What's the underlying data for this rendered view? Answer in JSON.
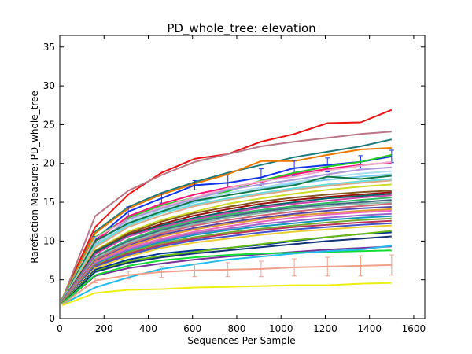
{
  "chart_data": {
    "type": "line",
    "title": "PD_whole_tree: elevation",
    "xlabel": "Sequences Per Sample",
    "ylabel": "Rarefaction Measure: PD_whole_tree",
    "xlim": [
      0,
      1650
    ],
    "ylim": [
      0,
      36.5
    ],
    "xticks": [
      0,
      200,
      400,
      600,
      800,
      1000,
      1200,
      1400,
      1600
    ],
    "yticks": [
      0,
      5,
      10,
      15,
      20,
      25,
      30,
      35
    ],
    "grid": false,
    "x": [
      10,
      160,
      310,
      460,
      610,
      760,
      910,
      1060,
      1210,
      1360,
      1500
    ],
    "series": [
      {
        "color": "#ee1111",
        "values": [
          2.5,
          11.8,
          16.0,
          18.8,
          20.6,
          21.2,
          22.8,
          23.8,
          25.2,
          25.3,
          26.9
        ]
      },
      {
        "color": "#bb7788",
        "values": [
          2.4,
          13.2,
          16.5,
          18.5,
          20.2,
          21.2,
          22.2,
          22.8,
          23.3,
          23.8,
          24.1
        ]
      },
      {
        "color": "#1a7a7a",
        "values": [
          2.4,
          11.2,
          14.4,
          16.2,
          17.6,
          18.8,
          19.8,
          20.8,
          21.5,
          22.2,
          23.1
        ]
      },
      {
        "color": "#ee7700",
        "values": [
          2.4,
          11.0,
          14.2,
          16.0,
          17.4,
          18.6,
          20.3,
          20.3,
          21.1,
          21.8,
          22.0
        ]
      },
      {
        "color": "#1133ee",
        "values": [
          2.3,
          10.2,
          13.8,
          15.5,
          17.2,
          17.5,
          18.2,
          19.4,
          19.8,
          20.2,
          20.9
        ],
        "error": [
          0,
          0.4,
          0.6,
          0.6,
          0.6,
          1.0,
          1.1,
          1.0,
          0.9,
          0.8,
          0.8
        ]
      },
      {
        "color": "#22cc22",
        "values": [
          2.4,
          10.5,
          13.0,
          14.6,
          15.6,
          16.4,
          17.8,
          18.8,
          19.6,
          20.2,
          21.1
        ]
      },
      {
        "color": "#ff1177",
        "values": [
          2.3,
          10.0,
          13.2,
          14.8,
          16.0,
          16.9,
          17.6,
          18.6,
          19.3,
          19.8,
          20.1
        ]
      },
      {
        "color": "#eeaacc",
        "values": [
          2.3,
          10.4,
          12.8,
          14.4,
          15.6,
          16.8,
          17.7,
          18.3,
          19.1,
          19.7,
          20.2
        ]
      },
      {
        "color": "#aa99dd",
        "values": [
          2.3,
          9.6,
          12.8,
          14.2,
          15.4,
          16.6,
          17.3,
          17.9,
          18.6,
          19.2,
          19.5
        ]
      },
      {
        "color": "#aaddee",
        "values": [
          2.3,
          9.5,
          12.5,
          14.0,
          15.2,
          16.2,
          16.9,
          17.6,
          18.2,
          18.7,
          19.0
        ]
      },
      {
        "color": "#77ccee",
        "values": [
          2.2,
          9.3,
          12.2,
          13.8,
          15.0,
          15.9,
          16.7,
          17.4,
          17.9,
          18.3,
          18.6
        ]
      },
      {
        "color": "#117744",
        "values": [
          2.3,
          10.0,
          12.3,
          13.8,
          15.2,
          15.9,
          16.6,
          17.2,
          18.3,
          18.0,
          18.4
        ]
      },
      {
        "color": "#66dddd",
        "values": [
          2.3,
          9.5,
          12.0,
          13.6,
          14.7,
          15.5,
          16.2,
          16.8,
          17.3,
          17.7,
          18.0
        ]
      },
      {
        "color": "#ddaa88",
        "values": [
          2.2,
          9.2,
          11.8,
          13.3,
          14.5,
          15.3,
          16.0,
          16.6,
          17.1,
          17.5,
          17.8
        ]
      },
      {
        "color": "#ccdd22",
        "values": [
          2.2,
          8.8,
          11.2,
          12.7,
          13.8,
          14.8,
          15.5,
          16.1,
          16.6,
          17.0,
          17.3
        ]
      },
      {
        "color": "#885522",
        "values": [
          2.2,
          8.7,
          11.0,
          12.5,
          13.6,
          14.4,
          15.1,
          15.6,
          16.0,
          16.3,
          16.5
        ]
      },
      {
        "color": "#991111",
        "values": [
          2.2,
          8.5,
          10.8,
          12.2,
          13.3,
          14.1,
          14.8,
          15.3,
          15.7,
          16.0,
          16.3
        ]
      },
      {
        "color": "#006666",
        "values": [
          2.2,
          8.6,
          10.7,
          12.0,
          13.0,
          13.8,
          14.5,
          15.0,
          15.5,
          15.8,
          16.1
        ]
      },
      {
        "color": "#cc44aa",
        "values": [
          2.2,
          8.3,
          10.6,
          11.8,
          12.8,
          13.6,
          14.3,
          14.8,
          15.2,
          15.6,
          15.9
        ]
      },
      {
        "color": "#33bb66",
        "values": [
          2.1,
          8.0,
          10.2,
          11.6,
          12.6,
          13.4,
          14.0,
          14.5,
          14.9,
          15.3,
          15.6
        ]
      },
      {
        "color": "#446688",
        "values": [
          2.1,
          7.9,
          10.0,
          11.4,
          12.4,
          13.2,
          13.8,
          14.3,
          14.7,
          15.0,
          15.3
        ]
      },
      {
        "color": "#88bbaa",
        "values": [
          2.1,
          7.8,
          9.8,
          11.2,
          12.2,
          13.0,
          13.6,
          14.1,
          14.5,
          14.8,
          15.0
        ]
      },
      {
        "color": "#cc6677",
        "values": [
          2.1,
          7.6,
          9.6,
          11.0,
          12.0,
          12.7,
          13.3,
          13.8,
          14.2,
          14.5,
          14.8
        ]
      },
      {
        "color": "#5544aa",
        "values": [
          2.1,
          7.4,
          9.4,
          10.8,
          11.7,
          12.4,
          13.0,
          13.5,
          13.9,
          14.2,
          14.4
        ]
      },
      {
        "color": "#dd9933",
        "values": [
          2.1,
          7.3,
          9.3,
          10.6,
          11.5,
          12.2,
          12.8,
          13.3,
          13.6,
          13.9,
          14.1
        ]
      },
      {
        "color": "#ee66bb",
        "values": [
          2.0,
          7.2,
          9.1,
          10.3,
          11.2,
          11.9,
          12.5,
          13.0,
          13.4,
          13.7,
          13.9
        ]
      },
      {
        "color": "#9966cc",
        "values": [
          2.0,
          7.1,
          8.9,
          10.1,
          11.0,
          11.6,
          12.2,
          12.6,
          13.0,
          13.3,
          13.5
        ]
      },
      {
        "color": "#1199bb",
        "values": [
          2.0,
          7.0,
          8.7,
          9.9,
          10.8,
          11.4,
          11.9,
          12.3,
          12.7,
          13.0,
          13.2
        ]
      },
      {
        "color": "#77aa33",
        "values": [
          2.0,
          6.9,
          8.6,
          9.7,
          10.5,
          11.1,
          11.6,
          12.0,
          12.4,
          12.7,
          12.9
        ]
      },
      {
        "color": "#bb3355",
        "values": [
          2.0,
          6.8,
          8.4,
          9.5,
          10.3,
          10.9,
          11.4,
          11.8,
          12.1,
          12.4,
          12.6
        ]
      },
      {
        "color": "#4455cc",
        "values": [
          2.0,
          6.7,
          8.2,
          9.3,
          10.1,
          10.6,
          11.1,
          11.5,
          11.8,
          12.1,
          12.3
        ]
      },
      {
        "color": "#eecc33",
        "values": [
          2.0,
          6.5,
          8.0,
          9.1,
          9.8,
          10.3,
          10.8,
          11.2,
          11.5,
          11.8,
          12.0
        ]
      },
      {
        "color": "#003399",
        "values": [
          2.0,
          6.3,
          7.6,
          8.4,
          8.8,
          9.1,
          9.5,
          10.0,
          10.5,
          10.9,
          11.1
        ]
      },
      {
        "color": "#66bb11",
        "values": [
          2.0,
          6.1,
          7.4,
          8.1,
          8.6,
          9.1,
          9.6,
          10.1,
          10.5,
          10.9,
          11.3
        ]
      },
      {
        "color": "#113377",
        "values": [
          1.9,
          6.0,
          7.2,
          7.9,
          8.4,
          8.8,
          9.2,
          9.6,
          10.0,
          10.3,
          10.6
        ]
      },
      {
        "color": "#773399",
        "values": [
          1.9,
          5.5,
          6.5,
          7.1,
          7.6,
          8.0,
          8.3,
          8.6,
          8.9,
          9.1,
          9.3
        ]
      },
      {
        "color": "#11dd33",
        "values": [
          1.9,
          5.6,
          6.8,
          7.5,
          7.9,
          8.2,
          8.4,
          8.5,
          8.6,
          8.7,
          8.8
        ]
      },
      {
        "color": "#22bbee",
        "values": [
          1.8,
          4.0,
          5.3,
          6.4,
          7.0,
          7.6,
          8.0,
          8.4,
          8.7,
          8.9,
          9.4
        ]
      },
      {
        "color": "#f0a088",
        "values": [
          1.8,
          4.9,
          5.6,
          6.0,
          6.2,
          6.3,
          6.4,
          6.6,
          6.7,
          6.8,
          6.9
        ],
        "error": [
          0,
          0.3,
          0.5,
          0.7,
          0.8,
          0.9,
          1.0,
          1.1,
          1.2,
          1.3,
          1.3
        ]
      },
      {
        "color": "#eeee11",
        "values": [
          1.7,
          3.3,
          3.7,
          3.8,
          4.0,
          4.1,
          4.2,
          4.3,
          4.3,
          4.5,
          4.6
        ]
      }
    ]
  }
}
